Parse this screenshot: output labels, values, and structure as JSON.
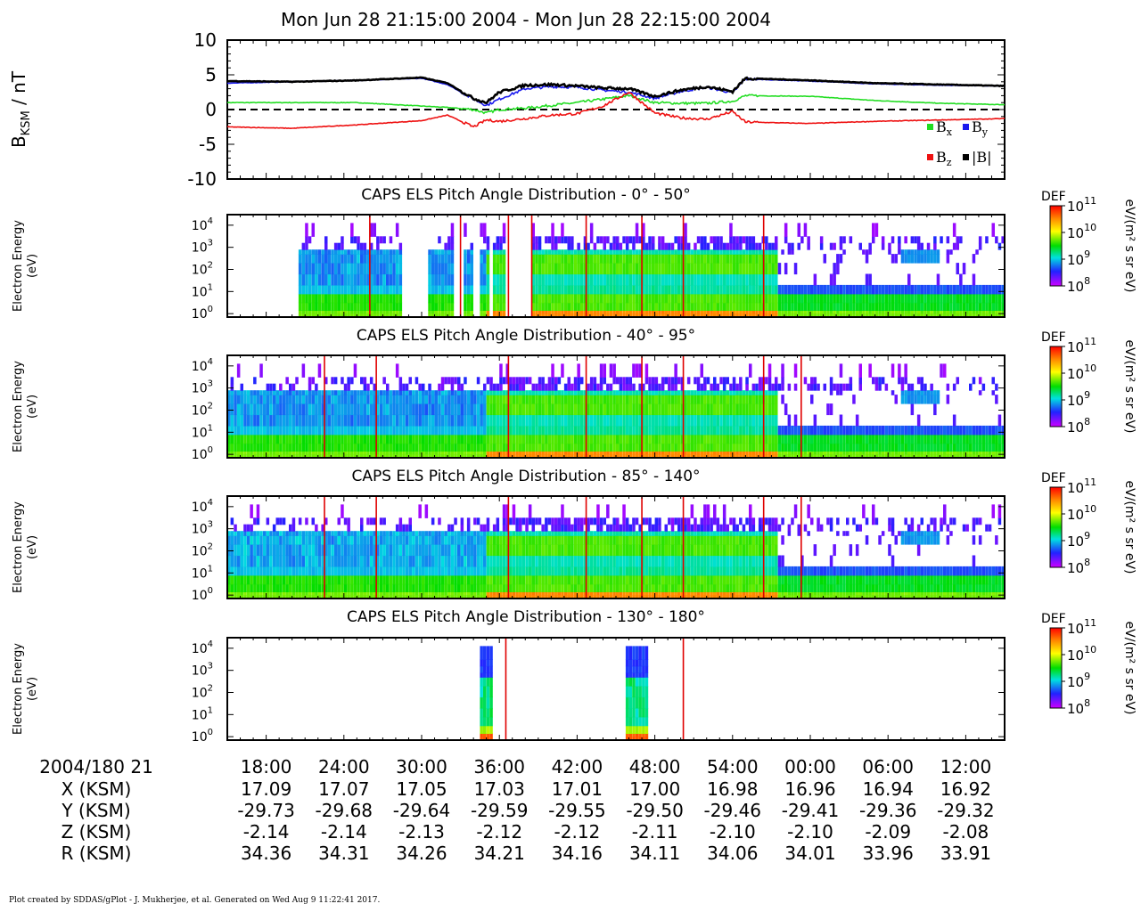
{
  "header": {
    "title": "Mon Jun 28 21:15:00 2004 - Mon Jun 28 22:15:00 2004"
  },
  "footer": {
    "credit": "Plot created by SDDAS/gPlot - J. Mukherjee, et al.  Generated on Wed Aug 9 11:22:41 2017."
  },
  "chart_data": [
    {
      "type": "line",
      "ylabel_main": "B",
      "ylabel_sub": "KSM",
      "ylabel_unit": " / nT",
      "ylim": [
        -10,
        10
      ],
      "ytick_values": [
        10,
        5,
        0,
        -5,
        -10
      ],
      "ytick_labels": [
        "10",
        "5",
        "0",
        "-5",
        "-10"
      ],
      "x_minutes_range": [
        15,
        75
      ],
      "zero_line": "dashed",
      "legend_placement": "bottom-right",
      "series": [
        {
          "name_main": "B",
          "name_sub": "x",
          "color": "#22dd22",
          "x": [
            15,
            20,
            25,
            30,
            32,
            34,
            35,
            36,
            38,
            40,
            42,
            44,
            46,
            48,
            50,
            52,
            54,
            55,
            60,
            65,
            70,
            75
          ],
          "y": [
            1.0,
            1.0,
            1.0,
            0.5,
            0.3,
            0.0,
            -0.5,
            0.0,
            0.2,
            0.6,
            1.0,
            1.5,
            2.0,
            1.0,
            0.9,
            0.9,
            1.2,
            2.0,
            1.9,
            1.3,
            0.9,
            0.7
          ]
        },
        {
          "name_main": "B",
          "name_sub": "y",
          "color": "#1a1aee",
          "x": [
            15,
            20,
            25,
            30,
            32,
            34,
            35,
            36,
            38,
            40,
            42,
            44,
            46,
            48,
            50,
            52,
            54,
            55,
            60,
            65,
            70,
            75
          ],
          "y": [
            3.8,
            4.0,
            4.2,
            4.5,
            3.6,
            1.5,
            0.6,
            1.5,
            3.0,
            3.3,
            3.2,
            2.8,
            2.5,
            1.6,
            2.6,
            3.2,
            2.4,
            4.4,
            4.1,
            3.7,
            3.5,
            3.4
          ]
        },
        {
          "name_main": "B",
          "name_sub": "z",
          "color": "#ee1111",
          "x": [
            15,
            20,
            25,
            30,
            32,
            34,
            35,
            36,
            38,
            40,
            42,
            44,
            46,
            48,
            50,
            52,
            54,
            55,
            60,
            65,
            70,
            75
          ],
          "y": [
            -2.5,
            -2.7,
            -2.2,
            -1.6,
            -0.8,
            -2.5,
            -1.5,
            -1.7,
            -1.3,
            -0.8,
            -0.6,
            0.5,
            2.5,
            -0.5,
            -1.2,
            -1.4,
            -0.3,
            -1.8,
            -2.0,
            -1.7,
            -1.5,
            -1.3
          ]
        },
        {
          "name_main": "|B|",
          "name_sub": "",
          "color": "#000000",
          "x": [
            15,
            20,
            25,
            30,
            32,
            34,
            35,
            36,
            38,
            40,
            42,
            44,
            46,
            48,
            50,
            52,
            54,
            55,
            60,
            65,
            70,
            75
          ],
          "y": [
            4.1,
            4.0,
            4.2,
            4.6,
            3.8,
            1.6,
            1.0,
            2.5,
            3.5,
            3.6,
            3.4,
            3.1,
            3.0,
            1.9,
            2.8,
            3.3,
            2.6,
            4.5,
            4.2,
            3.8,
            3.6,
            3.4
          ]
        }
      ]
    },
    {
      "type": "heatmap",
      "title": "CAPS ELS Pitch Angle Distribution - 0° - 50°",
      "ylabel": [
        "Electron Energy",
        "(eV)"
      ],
      "y_scale": "log",
      "ylim": [
        0.7,
        30000
      ],
      "ytick_exponents": [
        0,
        1,
        2,
        3,
        4
      ],
      "colorbar": {
        "label": "DEF",
        "unit": "eV/(m² s sr eV)",
        "tick_exponents": [
          8,
          9,
          10,
          11
        ],
        "range": [
          100000000.0,
          100000000000.0
        ],
        "palette": "rainbow"
      }
    },
    {
      "type": "heatmap",
      "title": "CAPS ELS Pitch Angle Distribution - 40° - 95°",
      "ylabel": [
        "Electron Energy",
        "(eV)"
      ],
      "y_scale": "log",
      "ylim": [
        0.7,
        30000
      ],
      "ytick_exponents": [
        0,
        1,
        2,
        3,
        4
      ],
      "colorbar": {
        "label": "DEF",
        "unit": "eV/(m² s sr eV)",
        "tick_exponents": [
          8,
          9,
          10,
          11
        ],
        "range": [
          100000000.0,
          100000000000.0
        ],
        "palette": "rainbow"
      }
    },
    {
      "type": "heatmap",
      "title": "CAPS ELS Pitch Angle Distribution - 85° - 140°",
      "ylabel": [
        "Electron Energy",
        "(eV)"
      ],
      "y_scale": "log",
      "ylim": [
        0.7,
        30000
      ],
      "ytick_exponents": [
        0,
        1,
        2,
        3,
        4
      ],
      "colorbar": {
        "label": "DEF",
        "unit": "eV/(m² s sr eV)",
        "tick_exponents": [
          8,
          9,
          10,
          11
        ],
        "range": [
          100000000.0,
          100000000000.0
        ],
        "palette": "rainbow"
      }
    },
    {
      "type": "heatmap",
      "title": "CAPS ELS Pitch Angle Distribution - 130° - 180°",
      "ylabel": [
        "Electron Energy",
        "(eV)"
      ],
      "y_scale": "log",
      "ylim": [
        0.7,
        30000
      ],
      "ytick_exponents": [
        0,
        1,
        2,
        3,
        4
      ],
      "colorbar": {
        "label": "DEF",
        "unit": "eV/(m² s sr eV)",
        "tick_exponents": [
          8,
          9,
          10,
          11
        ],
        "range": [
          100000000.0,
          100000000000.0
        ],
        "palette": "rainbow"
      }
    }
  ],
  "time_axis": {
    "start_label": "2004/180 21",
    "tick_minutes": [
      18,
      24,
      30,
      36,
      42,
      48,
      54,
      60,
      66,
      72
    ],
    "tick_labels": [
      "18:00",
      "24:00",
      "30:00",
      "36:00",
      "42:00",
      "48:00",
      "54:00",
      "00:00",
      "06:00",
      "12:00"
    ],
    "ephemeris": [
      {
        "label": "X (KSM)",
        "values": [
          "17.09",
          "17.07",
          "17.05",
          "17.03",
          "17.01",
          "17.00",
          "16.98",
          "16.96",
          "16.94",
          "16.92"
        ]
      },
      {
        "label": "Y (KSM)",
        "values": [
          "-29.73",
          "-29.68",
          "-29.64",
          "-29.59",
          "-29.55",
          "-29.50",
          "-29.46",
          "-29.41",
          "-29.36",
          "-29.32"
        ]
      },
      {
        "label": "Z (KSM)",
        "values": [
          "-2.14",
          "-2.14",
          "-2.13",
          "-2.12",
          "-2.12",
          "-2.11",
          "-2.10",
          "-2.10",
          "-2.09",
          "-2.08"
        ]
      },
      {
        "label": "R (KSM)",
        "values": [
          "34.36",
          "34.31",
          "34.26",
          "34.21",
          "34.16",
          "34.11",
          "34.06",
          "34.01",
          "33.96",
          "33.91"
        ]
      }
    ]
  }
}
